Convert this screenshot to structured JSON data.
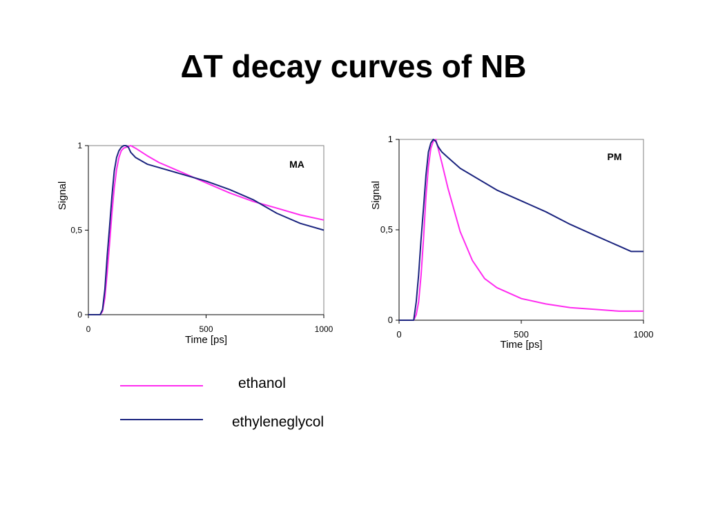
{
  "title": "ΔT decay curves  of NB",
  "legend": [
    {
      "label": "ethanol",
      "color": "#ff2bf0"
    },
    {
      "label": "ethyleneglycol",
      "color": "#1a237e"
    }
  ],
  "chart_data": [
    {
      "type": "line",
      "annotation": "MA",
      "xlabel": "Time [ps]",
      "ylabel": "Signal",
      "xlim": [
        0,
        1000
      ],
      "ylim": [
        0,
        1
      ],
      "x_ticks": [
        "0",
        "500",
        "1000"
      ],
      "y_ticks": [
        "0",
        "0,5",
        "1"
      ],
      "grid": false,
      "series": [
        {
          "name": "ethanol",
          "color": "#ff2bf0",
          "x": [
            0,
            50,
            60,
            70,
            80,
            90,
            100,
            110,
            120,
            130,
            140,
            150,
            160,
            170,
            180,
            200,
            250,
            300,
            400,
            500,
            600,
            700,
            800,
            900,
            1000
          ],
          "y": [
            0,
            0,
            0.02,
            0.1,
            0.25,
            0.42,
            0.6,
            0.75,
            0.86,
            0.93,
            0.97,
            0.985,
            0.99,
            0.995,
            1.0,
            0.985,
            0.94,
            0.9,
            0.84,
            0.78,
            0.72,
            0.67,
            0.63,
            0.59,
            0.56
          ]
        },
        {
          "name": "ethyleneglycol",
          "color": "#1a237e",
          "x": [
            0,
            50,
            60,
            70,
            80,
            90,
            100,
            110,
            120,
            130,
            140,
            150,
            160,
            170,
            180,
            200,
            250,
            300,
            400,
            500,
            600,
            700,
            800,
            900,
            1000
          ],
          "y": [
            0,
            0,
            0.03,
            0.15,
            0.35,
            0.52,
            0.7,
            0.85,
            0.93,
            0.97,
            0.99,
            1.0,
            1.0,
            0.99,
            0.96,
            0.93,
            0.89,
            0.87,
            0.83,
            0.79,
            0.74,
            0.68,
            0.6,
            0.54,
            0.5
          ]
        }
      ]
    },
    {
      "type": "line",
      "annotation": "PM",
      "xlabel": "Time [ps]",
      "ylabel": "Signal",
      "xlim": [
        0,
        1000
      ],
      "ylim": [
        0,
        1
      ],
      "x_ticks": [
        "0",
        "500",
        "1000"
      ],
      "y_ticks": [
        "0",
        "0,5",
        "1"
      ],
      "grid": false,
      "series": [
        {
          "name": "ethanol",
          "color": "#ff2bf0",
          "x": [
            0,
            60,
            70,
            80,
            90,
            100,
            110,
            120,
            130,
            140,
            150,
            160,
            175,
            200,
            250,
            300,
            350,
            400,
            500,
            600,
            700,
            800,
            900,
            1000
          ],
          "y": [
            0,
            0,
            0.03,
            0.1,
            0.25,
            0.45,
            0.68,
            0.85,
            0.95,
            0.99,
            1.0,
            0.95,
            0.87,
            0.73,
            0.49,
            0.33,
            0.23,
            0.18,
            0.12,
            0.09,
            0.07,
            0.06,
            0.05,
            0.05
          ]
        },
        {
          "name": "ethyleneglycol",
          "color": "#1a237e",
          "x": [
            0,
            60,
            70,
            80,
            90,
            100,
            110,
            120,
            130,
            140,
            150,
            160,
            175,
            200,
            250,
            300,
            400,
            500,
            600,
            700,
            800,
            900,
            950,
            1000
          ],
          "y": [
            0,
            0,
            0.1,
            0.25,
            0.45,
            0.62,
            0.8,
            0.93,
            0.98,
            1.0,
            0.99,
            0.96,
            0.93,
            0.9,
            0.84,
            0.8,
            0.72,
            0.66,
            0.6,
            0.53,
            0.47,
            0.41,
            0.38,
            0.38
          ]
        }
      ]
    }
  ]
}
